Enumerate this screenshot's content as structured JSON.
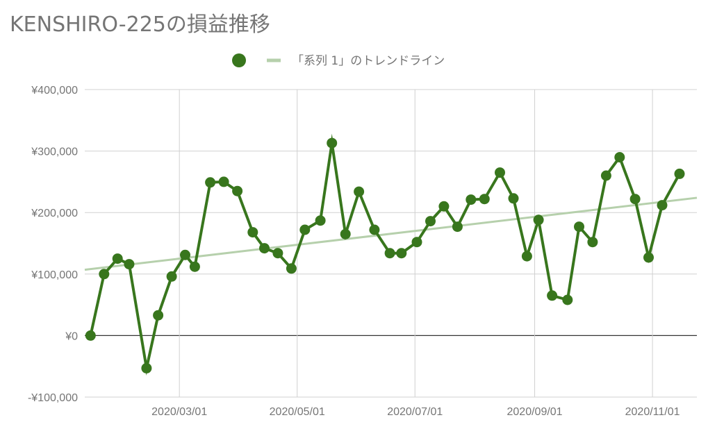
{
  "chart_data": {
    "type": "line",
    "title": "KENSHIRO-225の損益推移",
    "xlabel": "",
    "ylabel": "",
    "ylim": [
      -100000,
      400000
    ],
    "yticks": [
      400000,
      300000,
      200000,
      100000,
      0,
      -100000
    ],
    "ytick_labels": [
      "¥400,000",
      "¥300,000",
      "¥200,000",
      "¥100,000",
      "¥0",
      "-¥100,000"
    ],
    "xlim": [
      "2020-01-12",
      "2020-11-24"
    ],
    "xticks": [
      "2020-03-01",
      "2020-05-01",
      "2020-07-01",
      "2020-09-01",
      "2020-11-01"
    ],
    "xtick_labels": [
      "2020/03/01",
      "2020/05/01",
      "2020/07/01",
      "2020/09/01",
      "2020/11/01"
    ],
    "grid": true,
    "legend_position": "top-center",
    "series": [
      {
        "color": "#38761d",
        "points": [
          [
            "2020-01-15",
            0
          ],
          [
            "2020-01-22",
            100000
          ],
          [
            "2020-01-29",
            125000
          ],
          [
            "2020-02-04",
            116000
          ],
          [
            "2020-02-13",
            -53000
          ],
          [
            "2020-02-19",
            33000
          ],
          [
            "2020-02-26",
            96000
          ],
          [
            "2020-03-04",
            131000
          ],
          [
            "2020-03-09",
            112000
          ],
          [
            "2020-03-17",
            249000
          ],
          [
            "2020-03-24",
            250000
          ],
          [
            "2020-03-31",
            235000
          ],
          [
            "2020-04-08",
            168000
          ],
          [
            "2020-04-14",
            142000
          ],
          [
            "2020-04-21",
            134000
          ],
          [
            "2020-04-28",
            109000
          ],
          [
            "2020-05-05",
            172000
          ],
          [
            "2020-05-13",
            187000
          ],
          [
            "2020-05-19",
            313000
          ],
          [
            "2020-05-26",
            165000
          ],
          [
            "2020-06-02",
            234000
          ],
          [
            "2020-06-10",
            172000
          ],
          [
            "2020-06-18",
            134000
          ],
          [
            "2020-06-24",
            134000
          ],
          [
            "2020-07-02",
            152000
          ],
          [
            "2020-07-09",
            186000
          ],
          [
            "2020-07-16",
            210000
          ],
          [
            "2020-07-23",
            177000
          ],
          [
            "2020-07-30",
            221000
          ],
          [
            "2020-08-06",
            222000
          ],
          [
            "2020-08-14",
            265000
          ],
          [
            "2020-08-21",
            223000
          ],
          [
            "2020-08-28",
            129000
          ],
          [
            "2020-09-03",
            188000
          ],
          [
            "2020-09-10",
            65000
          ],
          [
            "2020-09-18",
            58000
          ],
          [
            "2020-09-24",
            177000
          ],
          [
            "2020-10-01",
            152000
          ],
          [
            "2020-10-08",
            260000
          ],
          [
            "2020-10-15",
            290000
          ],
          [
            "2020-10-23",
            222000
          ],
          [
            "2020-10-30",
            127000
          ],
          [
            "2020-11-06",
            212000
          ],
          [
            "2020-11-15",
            263000
          ]
        ]
      }
    ],
    "trendline": {
      "name": "「系列 1」のトレンドライン",
      "color": "#b6d0ac",
      "start": [
        "2020-01-12",
        107000
      ],
      "end": [
        "2020-11-24",
        224000
      ]
    }
  }
}
